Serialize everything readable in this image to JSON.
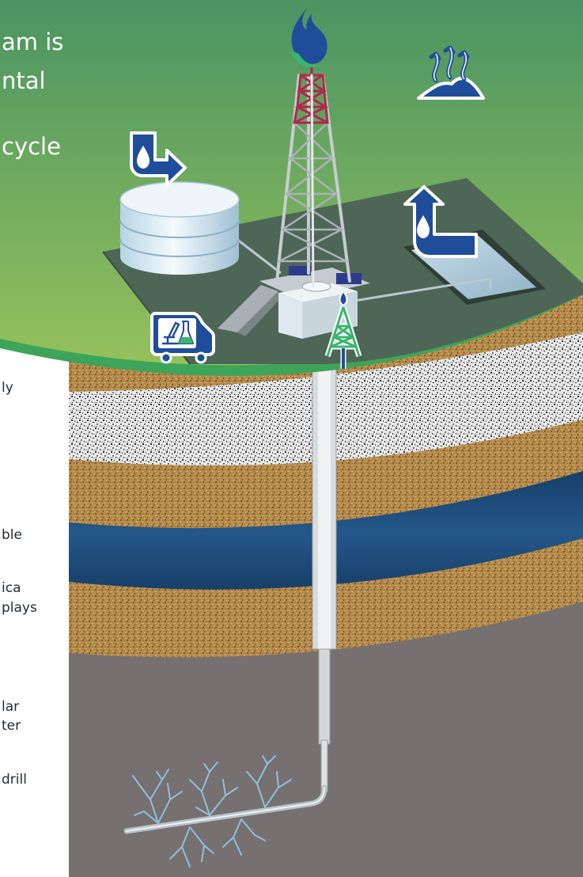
{
  "headline": {
    "line1": "am is",
    "line2": "ntal",
    "line3": "cycle"
  },
  "left_text": {
    "f1": "ly",
    "f2": "ble",
    "f3": "ica",
    "f4": "plays",
    "f5": "lar",
    "f6": "ter",
    "f7": "drill"
  },
  "icons": [
    "flame-icon",
    "evaporation-icon",
    "water-source-icon",
    "water-return-icon",
    "lab-testing-icon",
    "drill-bit-icon"
  ],
  "colors": {
    "sky_top": "#4a9462",
    "sky_bottom": "#95c15c",
    "ground_rim": "#3da55a",
    "pad": "#4d6656",
    "icon_blue": "#1f4d9a",
    "water_layer": "#1e4c79",
    "sand_layer": "#b48a4b",
    "shale": "#767070"
  }
}
